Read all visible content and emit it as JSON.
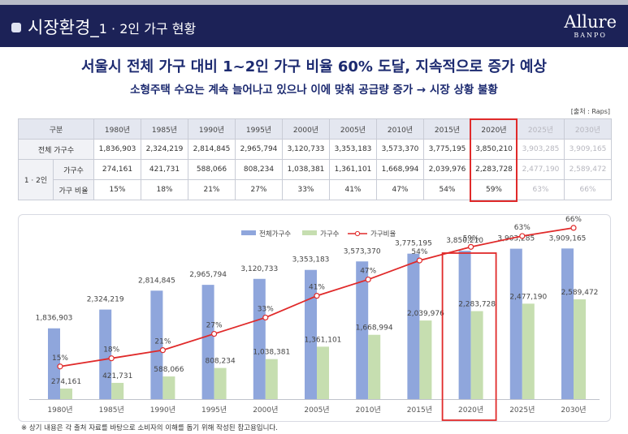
{
  "header": {
    "title_main": "시장환경_",
    "title_sub": "1 · 2인 가구 현황",
    "logo_line1": "Allure",
    "logo_line2": "BANPO"
  },
  "headline": "서울시 전체 가구 대비 1~2인 가구 비율 60% 도달, 지속적으로 증가 예상",
  "subheadline": "소형주택 수요는 계속 늘어나고 있으나 이에 맞춰 공급량 증가 → 시장 상황 불황",
  "source": "[출처 : Raps]",
  "table": {
    "header_label": "구분",
    "years": [
      "1980년",
      "1985년",
      "1990년",
      "1995년",
      "2000년",
      "2005년",
      "2010년",
      "2015년",
      "2020년",
      "2025년",
      "2030년"
    ],
    "rows": {
      "total_label": "전체 가구수",
      "group_label": "1 · 2인",
      "households_label": "가구수",
      "ratio_label": "가구 비율",
      "total": [
        "1,836,903",
        "2,324,219",
        "2,814,845",
        "2,965,794",
        "3,120,733",
        "3,353,183",
        "3,573,370",
        "3,775,195",
        "3,850,210",
        "3,903,285",
        "3,909,165"
      ],
      "households": [
        "274,161",
        "421,731",
        "588,066",
        "808,234",
        "1,038,381",
        "1,361,101",
        "1,668,994",
        "2,039,976",
        "2,283,728",
        "2,477,190",
        "2,589,472"
      ],
      "ratio": [
        "15%",
        "18%",
        "21%",
        "27%",
        "33%",
        "41%",
        "47%",
        "54%",
        "59%",
        "63%",
        "66%"
      ]
    }
  },
  "chart_data": {
    "type": "bar",
    "categories": [
      "1980년",
      "1985년",
      "1990년",
      "1995년",
      "2000년",
      "2005년",
      "2010년",
      "2015년",
      "2020년",
      "2025년",
      "2030년"
    ],
    "series": [
      {
        "name": "전체가구수",
        "kind": "bar",
        "color": "#8fa6dc",
        "values": [
          1836903,
          2324219,
          2814845,
          2965794,
          3120733,
          3353183,
          3573370,
          3775195,
          3850210,
          3903285,
          3909165
        ],
        "labels": [
          "1,836,903",
          "2,324,219",
          "2,814,845",
          "2,965,794",
          "3,120,733",
          "3,353,183",
          "3,573,370",
          "3,775,195",
          "3,850,210",
          "3,903,285",
          "3,909,165"
        ]
      },
      {
        "name": "가구수",
        "kind": "bar",
        "color": "#c6deb0",
        "values": [
          274161,
          421731,
          588066,
          808234,
          1038381,
          1361101,
          1668994,
          2039976,
          2283728,
          2477190,
          2589472
        ],
        "labels": [
          "274,161",
          "421,731",
          "588,066",
          "808,234",
          "1,038,381",
          "1,361,101",
          "1,668,994",
          "2,039,976",
          "2,283,728",
          "2,477,190",
          "2,589,472"
        ]
      },
      {
        "name": "가구비율",
        "kind": "line",
        "color": "#e02a2a",
        "values": [
          15,
          18,
          21,
          27,
          33,
          41,
          47,
          54,
          59,
          63,
          66
        ],
        "labels": [
          "15%",
          "18%",
          "21%",
          "27%",
          "33%",
          "41%",
          "47%",
          "54%",
          "59%",
          "63%",
          "66%"
        ]
      }
    ],
    "highlight_category": "2020년",
    "legend_position": "top-center",
    "grid": false
  },
  "footnote": "※ 상기 내용은 각 출처 자료를 바탕으로 소비자의 이해를 돕기 위해 작성된 참고용입니다."
}
